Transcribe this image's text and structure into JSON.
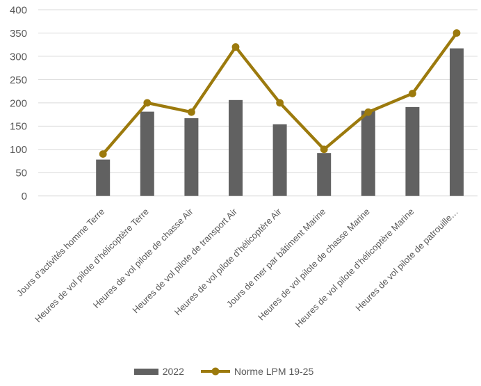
{
  "chart_data": {
    "type": "bar",
    "subtype": "bar-with-line-overlay",
    "title": "",
    "xlabel": "",
    "ylabel": "",
    "ylim": [
      0,
      400
    ],
    "ytick_step": 50,
    "yticks": [
      0,
      50,
      100,
      150,
      200,
      250,
      300,
      350,
      400
    ],
    "grid": true,
    "legend_position": "bottom",
    "categories": [
      "Jours d’activités homme Terre",
      "Heures de vol pilote d’hélicoptère Terre",
      "Heures de vol pilote de chasse Air",
      "Heures de vol pilote de transport Air",
      "Heures de vol pilote d’hélicoptère Air",
      "Jours de mer par bâtiment Marine",
      "Heures de vol pilote de chasse Marine",
      "Heures de vol pilote d’hélicoptère Marine",
      "Heures de vol pilote de patrouille…"
    ],
    "series": [
      {
        "name": "2022",
        "type": "bar",
        "color": "#616161",
        "values": [
          78,
          181,
          167,
          206,
          154,
          92,
          183,
          191,
          317
        ]
      },
      {
        "name": "Norme LPM 19-25",
        "type": "line",
        "color": "#9C7A0D",
        "values": [
          90,
          200,
          180,
          320,
          200,
          100,
          180,
          220,
          350
        ]
      }
    ],
    "colors": {
      "gridline": "#D9D9D9",
      "axis_text": "#595959",
      "background": "#FFFFFF"
    }
  }
}
